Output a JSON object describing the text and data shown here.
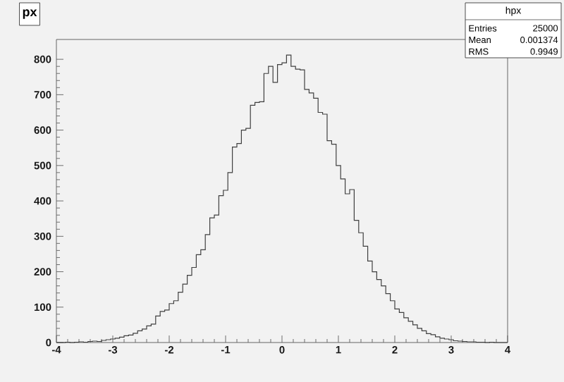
{
  "chart_data": {
    "type": "histogram",
    "title": "px",
    "bins": [
      -4,
      -3.92,
      -3.84,
      -3.76,
      -3.68,
      -3.6,
      -3.52,
      -3.44,
      -3.36,
      -3.28,
      -3.2,
      -3.12,
      -3.04,
      -2.96,
      -2.88,
      -2.8,
      -2.72,
      -2.64,
      -2.56,
      -2.48,
      -2.4,
      -2.32,
      -2.24,
      -2.16,
      -2.08,
      -2,
      -1.92,
      -1.84,
      -1.76,
      -1.68,
      -1.6,
      -1.52,
      -1.44,
      -1.36,
      -1.28,
      -1.2,
      -1.12,
      -1.04,
      -0.96,
      -0.88,
      -0.8,
      -0.72,
      -0.64,
      -0.56,
      -0.48,
      -0.4,
      -0.32,
      -0.24,
      -0.16,
      -0.08,
      0,
      0.08,
      0.16,
      0.24,
      0.32,
      0.4,
      0.48,
      0.56,
      0.64,
      0.72,
      0.8,
      0.88,
      0.96,
      1.04,
      1.12,
      1.2,
      1.28,
      1.36,
      1.44,
      1.52,
      1.6,
      1.68,
      1.76,
      1.84,
      1.92,
      2,
      2.08,
      2.16,
      2.24,
      2.32,
      2.4,
      2.48,
      2.56,
      2.64,
      2.72,
      2.8,
      2.88,
      2.96,
      3.04,
      3.12,
      3.2,
      3.28,
      3.36,
      3.44,
      3.52,
      3.6,
      3.68,
      3.76,
      3.84,
      3.92,
      4
    ],
    "values": [
      0,
      0,
      1,
      0,
      1,
      2,
      1,
      3,
      4,
      3,
      6,
      8,
      10,
      12,
      15,
      19,
      21,
      26,
      33,
      38,
      47,
      52,
      75,
      88,
      92,
      110,
      118,
      142,
      165,
      190,
      212,
      248,
      262,
      305,
      352,
      360,
      415,
      430,
      480,
      552,
      562,
      600,
      605,
      670,
      678,
      680,
      760,
      780,
      735,
      785,
      790,
      812,
      780,
      772,
      770,
      715,
      705,
      690,
      650,
      645,
      570,
      560,
      500,
      462,
      420,
      432,
      345,
      310,
      272,
      230,
      200,
      178,
      160,
      138,
      118,
      95,
      85,
      70,
      60,
      50,
      40,
      33,
      25,
      22,
      16,
      12,
      10,
      8,
      5,
      4,
      3,
      2,
      2,
      1,
      1,
      0,
      1,
      0,
      0,
      0
    ],
    "color": "#404040",
    "xlim": [
      -4,
      4
    ],
    "ylim": [
      0,
      856
    ],
    "xticks": [
      -4,
      -3,
      -2,
      -1,
      0,
      1,
      2,
      3,
      4
    ],
    "yticks": [
      0,
      100,
      200,
      300,
      400,
      500,
      600,
      700,
      800
    ],
    "annotations": [
      "hpx",
      "Entries",
      "25000",
      "Mean",
      "0.001374",
      "RMS",
      "0.9949"
    ]
  }
}
